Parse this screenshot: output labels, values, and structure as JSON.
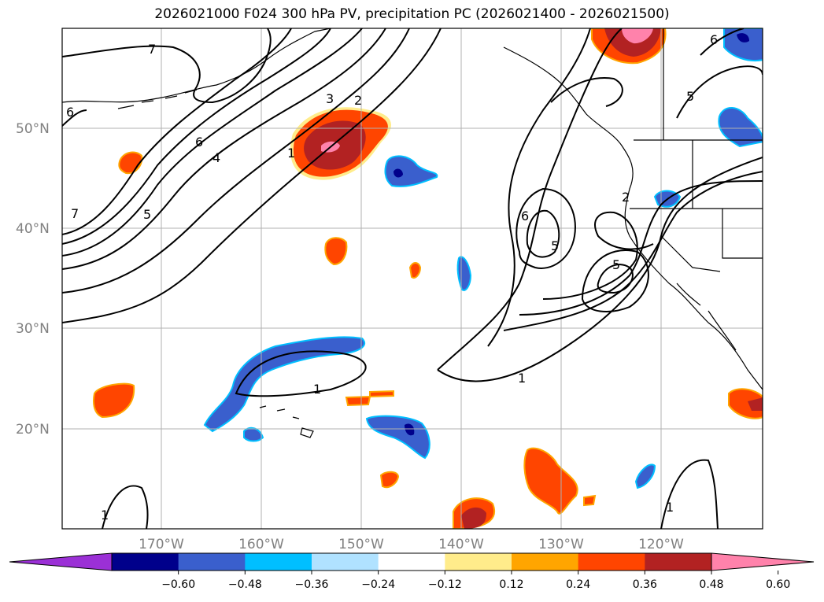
{
  "title": "2026021000 F024 300 hPa PV, precipitation PC (2026021400 - 2026021500)",
  "lat_labels": [
    "50°N",
    "40°N",
    "30°N",
    "20°N"
  ],
  "lon_labels": [
    "170°W",
    "160°W",
    "150°W",
    "140°W",
    "130°W",
    "120°W"
  ],
  "colorbar": {
    "colors": [
      "#9b30d6",
      "#00008b",
      "#3a5fcd",
      "#00bfff",
      "#b0e2ff",
      "#ffffff",
      "#ffec8b",
      "#ffa500",
      "#ff4500",
      "#b22222",
      "#ff82ab"
    ],
    "tick_labels": [
      "−0.60",
      "−0.48",
      "−0.36",
      "−0.24",
      "−0.12",
      "0.12",
      "0.24",
      "0.36",
      "0.48",
      "0.60"
    ]
  },
  "contour_labels": [
    "7",
    "6",
    "6",
    "4",
    "5",
    "7",
    "3",
    "2",
    "1",
    "6",
    "5",
    "5",
    "2",
    "5",
    "1",
    "1",
    "1",
    "1",
    "6"
  ],
  "colors": {
    "grid": "#b0b0b0",
    "contour": "#000000",
    "coast": "#000000"
  }
}
